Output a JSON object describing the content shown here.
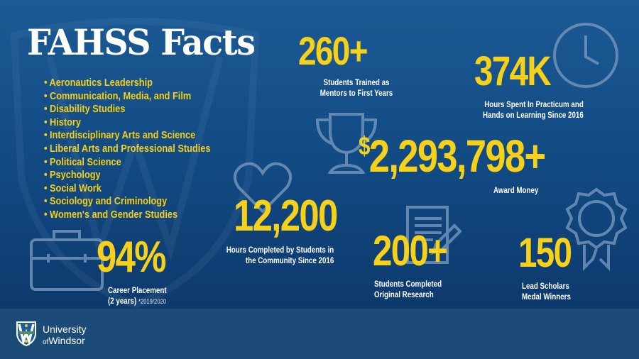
{
  "title": "FAHSS Facts",
  "programs": [
    "Aeronautics Leadership",
    "Communication, Media, and Film",
    "Disability Studies",
    "History",
    "Interdisciplinary Arts and Science",
    "Liberal Arts and Professional Studies",
    "Political Science",
    "Psychology",
    "Social Work",
    "Sociology and Criminology",
    "Women's and Gender Studies"
  ],
  "stats": {
    "mentors": {
      "value": "260+",
      "caption1": "Students Trained as",
      "caption2": "Mentors to First Years",
      "icon": "clock-icon"
    },
    "practicum": {
      "value": "374K",
      "caption1": "Hours Spent In Practicum and",
      "caption2": "Hands on Learning Since 2016",
      "icon": "clock-icon"
    },
    "award": {
      "currency": "$",
      "value": "2,293,798+",
      "caption1": "Award Money",
      "icon": "trophy-icon"
    },
    "community": {
      "value": "12,200",
      "caption1": "Hours Completed by Students in",
      "caption2": "the Community Since 2016",
      "icon": "heart-icon"
    },
    "research": {
      "value": "200+",
      "caption1": "Students Completed",
      "caption2": "Original Research",
      "icon": "document-pencil-icon"
    },
    "scholars": {
      "value": "150",
      "caption1": "Lead Scholars",
      "caption2": "Medal Winners",
      "icon": "medal-icon"
    },
    "career": {
      "value": "94%",
      "caption1": "Career Placement",
      "caption2": "(2 years)",
      "note": "*2019/2020",
      "icon": "briefcase-icon"
    }
  },
  "footer": {
    "line1": "University",
    "of": "of",
    "line2": "Windsor"
  },
  "colors": {
    "accent": "#f7d117",
    "background": "#124a83",
    "footer": "#1d4b77"
  }
}
